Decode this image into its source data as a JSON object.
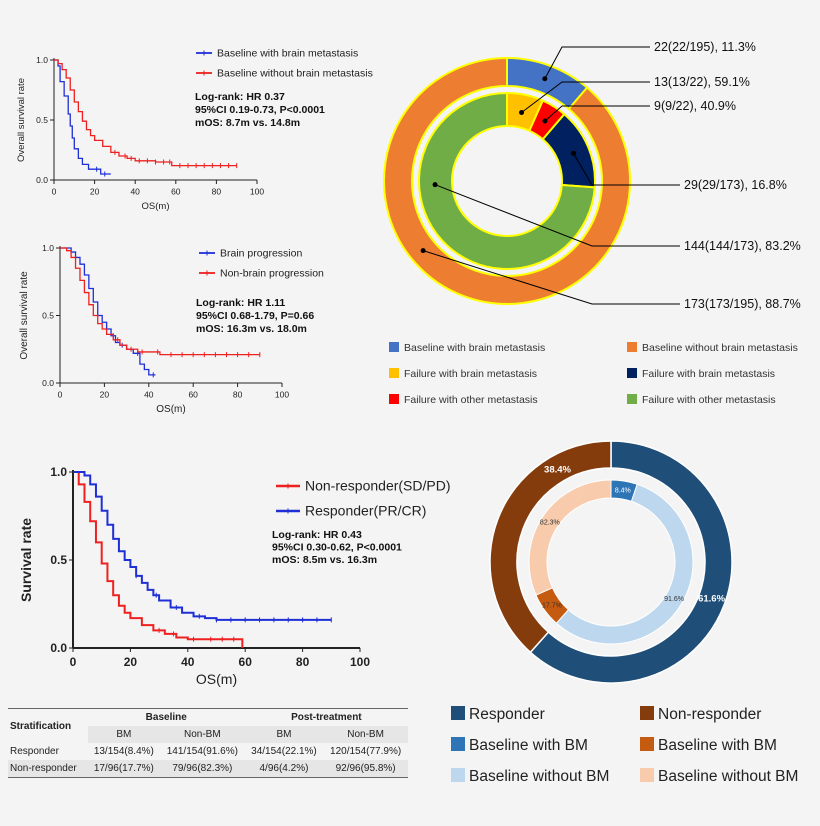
{
  "colors": {
    "blue": "#1f2fd6",
    "red": "#ee2020",
    "bg": "#f4f4f4",
    "donut_baseline_bm": "#4472c4",
    "donut_baseline_nonbm": "#ed7d31",
    "donut_fail_brain_bm": "#ffc000",
    "donut_fail_other_bm": "#ff0000",
    "donut_fail_brain_nonbm": "#002060",
    "donut_fail_other_nonbm": "#70ad47",
    "donut_outline": "#ffff00",
    "resp_dark": "#1f4e79",
    "nonresp_dark": "#843c0c",
    "resp_bm": "#2e75b6",
    "resp_nonbm": "#bdd7ee",
    "nonresp_bm": "#c55a11",
    "nonresp_nonbm": "#f8cbad"
  },
  "chart_data": [
    {
      "type": "line",
      "kind": "kaplan-meier",
      "ylabel": "Overall survival rate",
      "xlabel": "OS(m)",
      "xlim": [
        0,
        100
      ],
      "ylim": [
        0,
        1.0
      ],
      "x_ticks": [
        "0",
        "20",
        "40",
        "60",
        "80",
        "100"
      ],
      "y_ticks": [
        "0.0",
        "0.5",
        "1.0"
      ],
      "annotation": [
        "Log-rank: HR 0.37",
        "95%CI  0.19-0.73, P<0.0001",
        "mOS: 8.7m vs. 14.8m"
      ],
      "series": [
        {
          "name": "Baseline with brain metastasis",
          "color": "blue",
          "x": [
            0,
            2,
            3,
            5,
            7,
            8,
            9,
            10,
            12,
            14,
            17,
            20,
            23,
            26,
            28
          ],
          "y": [
            1.0,
            0.95,
            0.82,
            0.7,
            0.55,
            0.45,
            0.35,
            0.26,
            0.18,
            0.13,
            0.09,
            0.09,
            0.05,
            0.05,
            0.05
          ],
          "censor_x": [
            21,
            25
          ]
        },
        {
          "name": "Baseline without brain metastasis",
          "color": "red",
          "x": [
            0,
            2,
            4,
            6,
            8,
            10,
            12,
            14,
            16,
            18,
            20,
            24,
            28,
            32,
            36,
            40,
            45,
            50,
            55,
            58,
            65,
            75,
            90
          ],
          "y": [
            1.0,
            0.97,
            0.92,
            0.85,
            0.75,
            0.65,
            0.57,
            0.49,
            0.42,
            0.37,
            0.33,
            0.28,
            0.23,
            0.2,
            0.18,
            0.16,
            0.16,
            0.15,
            0.15,
            0.12,
            0.12,
            0.12,
            0.12
          ],
          "censor_x": [
            30,
            35,
            38,
            42,
            46,
            50,
            54,
            57,
            62,
            66,
            70,
            74,
            78,
            82,
            86,
            90
          ]
        }
      ]
    },
    {
      "type": "line",
      "kind": "kaplan-meier",
      "ylabel": "Overall survival rate",
      "xlabel": "OS(m)",
      "xlim": [
        0,
        100
      ],
      "ylim": [
        0,
        1.0
      ],
      "x_ticks": [
        "0",
        "20",
        "40",
        "60",
        "80",
        "100"
      ],
      "y_ticks": [
        "0.0",
        "0.5",
        "1.0"
      ],
      "annotation": [
        "Log-rank: HR 1.11",
        "95%CI  0.68-1.79, P=0.66",
        "mOS: 16.3m vs. 18.0m"
      ],
      "series": [
        {
          "name": "Brain progression",
          "color": "blue",
          "x": [
            0,
            3,
            5,
            7,
            9,
            11,
            13,
            15,
            17,
            19,
            21,
            23,
            25,
            27,
            30,
            33,
            36,
            38,
            40,
            43
          ],
          "y": [
            1.0,
            1.0,
            0.97,
            0.93,
            0.88,
            0.8,
            0.7,
            0.6,
            0.5,
            0.45,
            0.4,
            0.35,
            0.3,
            0.28,
            0.25,
            0.22,
            0.14,
            0.1,
            0.06,
            0.06
          ],
          "censor_x": [
            24,
            28,
            35,
            42
          ]
        },
        {
          "name": "Non-brain progression",
          "color": "red",
          "x": [
            0,
            3,
            5,
            7,
            9,
            11,
            13,
            15,
            17,
            19,
            21,
            24,
            27,
            30,
            35,
            40,
            45,
            55,
            70,
            90
          ],
          "y": [
            1.0,
            0.98,
            0.93,
            0.85,
            0.76,
            0.67,
            0.58,
            0.5,
            0.44,
            0.4,
            0.36,
            0.32,
            0.28,
            0.25,
            0.23,
            0.23,
            0.21,
            0.21,
            0.21,
            0.21
          ],
          "censor_x": [
            26,
            32,
            37,
            44,
            50,
            55,
            60,
            65,
            70,
            75,
            80,
            85,
            90
          ]
        }
      ]
    },
    {
      "type": "pie",
      "kind": "nested-donut",
      "rings": [
        {
          "ring": "outer",
          "slices": [
            {
              "name": "Baseline with brain metastasis",
              "value": 22,
              "color": "donut_baseline_bm"
            },
            {
              "name": "Baseline without brain metastasis",
              "value": 173,
              "color": "donut_baseline_nonbm"
            }
          ]
        },
        {
          "ring": "inner",
          "slices": [
            {
              "name": "Failure with brain metastasis",
              "value": 13,
              "color": "donut_fail_brain_bm"
            },
            {
              "name": "Failure with other metastasis",
              "value": 9,
              "color": "donut_fail_other_bm"
            },
            {
              "name": "Failure with brain metastasis",
              "value": 29,
              "color": "donut_fail_brain_nonbm"
            },
            {
              "name": "Failure with other metastasis",
              "value": 144,
              "color": "donut_fail_other_nonbm"
            }
          ]
        }
      ],
      "callouts": [
        "22(22/195),  11.3%",
        "13(13/22),  59.1%",
        "9(9/22),  40.9%",
        "29(29/173),  16.8%",
        "144(144/173),  83.2%",
        "173(173/195),  88.7%"
      ],
      "legend": [
        {
          "label": "Baseline with brain metastasis",
          "color": "donut_baseline_bm"
        },
        {
          "label": "Baseline without brain metastasis",
          "color": "donut_baseline_nonbm"
        },
        {
          "label": "Failure with brain metastasis",
          "color": "donut_fail_brain_bm"
        },
        {
          "label": "Failure with brain metastasis",
          "color": "donut_fail_brain_nonbm"
        },
        {
          "label": "Failure with other metastasis",
          "color": "donut_fail_other_bm"
        },
        {
          "label": "Failure with other metastasis",
          "color": "donut_fail_other_nonbm"
        }
      ]
    },
    {
      "type": "line",
      "kind": "kaplan-meier",
      "ylabel": "Survival rate",
      "xlabel": "OS(m)",
      "xlim": [
        0,
        100
      ],
      "ylim": [
        0,
        1.0
      ],
      "x_ticks": [
        "0",
        "20",
        "40",
        "60",
        "80",
        "100"
      ],
      "y_ticks": [
        "0.0",
        "0.5",
        "1.0"
      ],
      "annotation": [
        "Log-rank: HR 0.43",
        "95%CI  0.30-0.62, P<0.0001",
        "mOS: 8.5m vs. 16.3m"
      ],
      "series": [
        {
          "name": "Non-responder(SD/PD)",
          "color": "red",
          "x": [
            0,
            2,
            4,
            6,
            8,
            10,
            12,
            14,
            16,
            18,
            20,
            24,
            28,
            32,
            36,
            40,
            45,
            50,
            55,
            58,
            59
          ],
          "y": [
            1.0,
            0.93,
            0.83,
            0.72,
            0.6,
            0.48,
            0.38,
            0.3,
            0.24,
            0.2,
            0.17,
            0.13,
            0.1,
            0.08,
            0.06,
            0.05,
            0.05,
            0.05,
            0.05,
            0.05,
            0.0
          ],
          "censor_x": [
            30,
            35,
            42,
            48,
            52,
            56
          ]
        },
        {
          "name": "Responder(PR/CR)",
          "color": "blue",
          "x": [
            0,
            2,
            4,
            6,
            8,
            10,
            12,
            14,
            16,
            18,
            20,
            22,
            24,
            26,
            28,
            30,
            34,
            38,
            42,
            46,
            50,
            60,
            70,
            80,
            90
          ],
          "y": [
            1.0,
            1.0,
            0.98,
            0.93,
            0.86,
            0.78,
            0.7,
            0.62,
            0.55,
            0.5,
            0.46,
            0.41,
            0.37,
            0.33,
            0.3,
            0.27,
            0.23,
            0.2,
            0.18,
            0.17,
            0.16,
            0.16,
            0.16,
            0.16,
            0.16
          ],
          "censor_x": [
            22,
            29,
            36,
            44,
            50,
            55,
            60,
            65,
            70,
            75,
            80,
            85,
            90
          ]
        }
      ]
    },
    {
      "type": "pie",
      "kind": "nested-donut",
      "rings": [
        {
          "ring": "outer",
          "slices": [
            {
              "name": "Responder",
              "value": 61.6,
              "label": "61.6%",
              "color": "resp_dark"
            },
            {
              "name": "Non-responder",
              "value": 38.4,
              "label": "38.4%",
              "color": "nonresp_dark"
            }
          ]
        },
        {
          "ring": "inner",
          "slices": [
            {
              "name": "Baseline with BM",
              "value": 8.4,
              "label": "8.4%",
              "color": "resp_bm"
            },
            {
              "name": "Baseline without BM",
              "value": 91.6,
              "label": "91.6%",
              "color": "resp_nonbm"
            },
            {
              "name": "Baseline with BM",
              "value": 17.7,
              "label": "17.7%",
              "color": "nonresp_bm"
            },
            {
              "name": "Baseline without BM",
              "value": 82.3,
              "label": "82.3%",
              "color": "nonresp_nonbm"
            }
          ]
        }
      ],
      "legend": [
        {
          "label": "Responder",
          "color": "resp_dark"
        },
        {
          "label": "Non-responder",
          "color": "nonresp_dark"
        },
        {
          "label": "Baseline with BM",
          "color": "resp_bm"
        },
        {
          "label": "Baseline with BM",
          "color": "nonresp_bm"
        },
        {
          "label": "Baseline without BM",
          "color": "resp_nonbm"
        },
        {
          "label": "Baseline without BM",
          "color": "nonresp_nonbm"
        }
      ]
    },
    {
      "type": "table",
      "headers": {
        "stratification": "Stratification",
        "baseline": "Baseline",
        "post": "Post-treatment",
        "bm": "BM",
        "nonbm": "Non-BM"
      },
      "rows": [
        {
          "label": "Responder",
          "cells": [
            "13/154(8.4%)",
            "141/154(91.6%)",
            "34/154(22.1%)",
            "120/154(77.9%)"
          ]
        },
        {
          "label": "Non-responder",
          "cells": [
            "17/96(17.7%)",
            "79/96(82.3%)",
            "4/96(4.2%)",
            "92/96(95.8%)"
          ]
        }
      ]
    }
  ]
}
